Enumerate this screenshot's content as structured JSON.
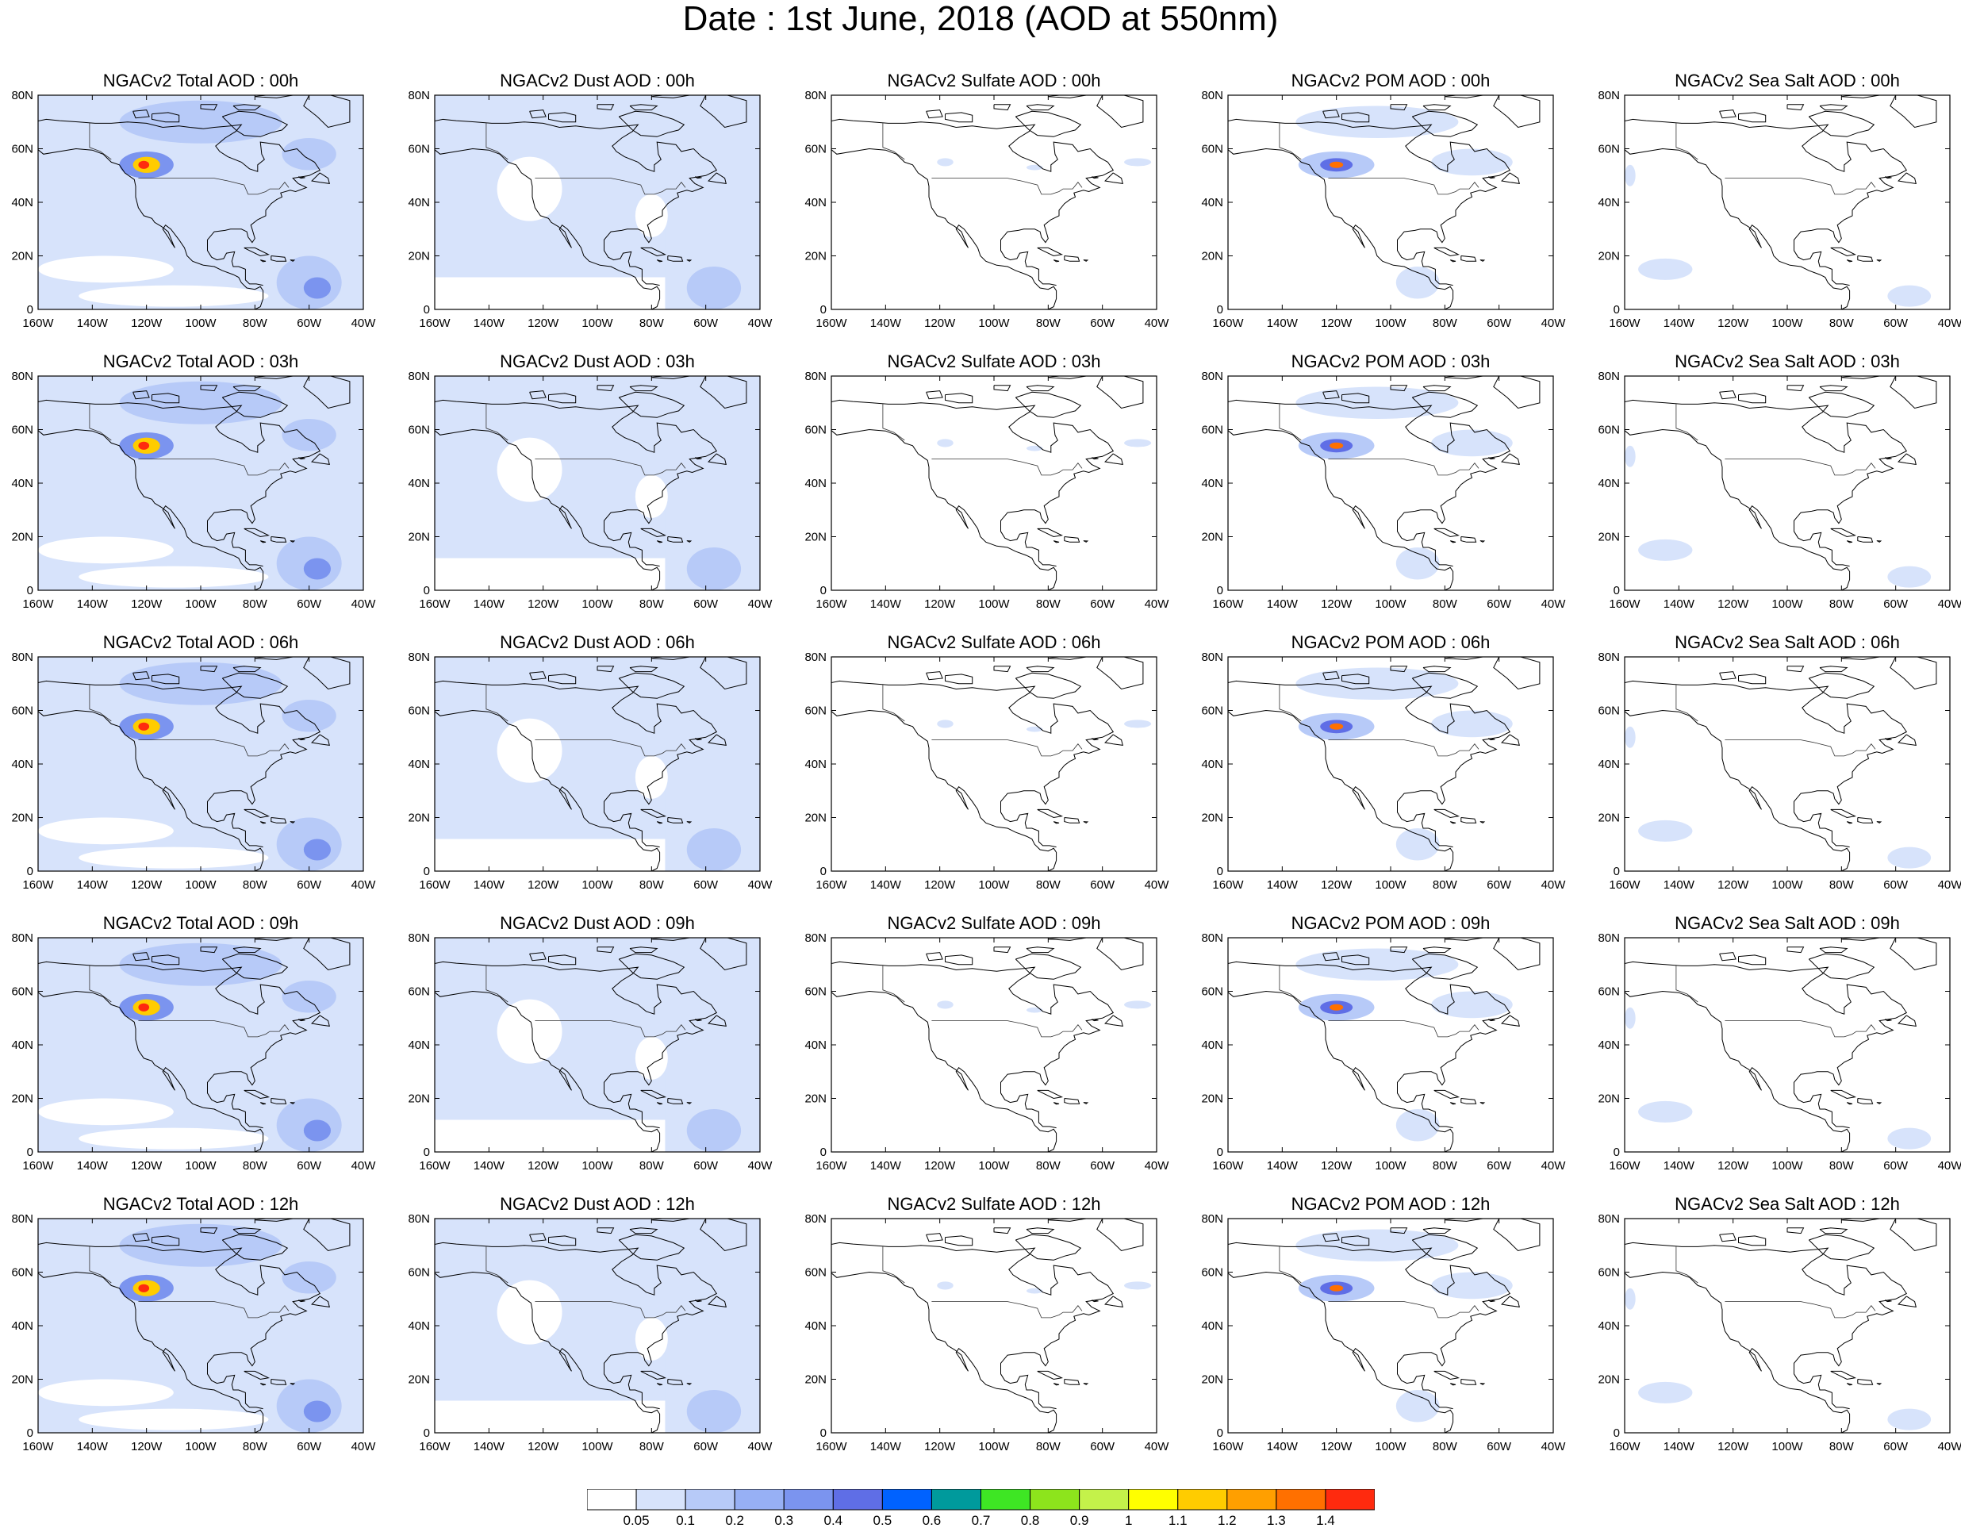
{
  "title": "Date : 1st June, 2018 (AOD at 550nm)",
  "axes": {
    "lon_ticks": [
      "160W",
      "140W",
      "120W",
      "100W",
      "80W",
      "60W",
      "40W"
    ],
    "lat_ticks": [
      "80N",
      "60N",
      "40N",
      "20N",
      "0"
    ]
  },
  "columns": [
    "total",
    "dust",
    "sulfate",
    "pom",
    "seasalt"
  ],
  "rows": [
    "00h",
    "03h",
    "06h",
    "09h",
    "12h"
  ],
  "panel_titles": [
    [
      "NGACv2 Total AOD : 00h",
      "NGACv2 Dust AOD : 00h",
      "NGACv2 Sulfate AOD : 00h",
      "NGACv2 POM AOD : 00h",
      "NGACv2 Sea Salt AOD : 00h"
    ],
    [
      "NGACv2 Total AOD : 03h",
      "NGACv2 Dust AOD : 03h",
      "NGACv2 Sulfate AOD : 03h",
      "NGACv2 POM AOD : 03h",
      "NGACv2 Sea Salt AOD : 03h"
    ],
    [
      "NGACv2 Total AOD : 06h",
      "NGACv2 Dust AOD : 06h",
      "NGACv2 Sulfate AOD : 06h",
      "NGACv2 POM AOD : 06h",
      "NGACv2 Sea Salt AOD : 06h"
    ],
    [
      "NGACv2 Total AOD : 09h",
      "NGACv2 Dust AOD : 09h",
      "NGACv2 Sulfate AOD : 09h",
      "NGACv2 POM AOD : 09h",
      "NGACv2 Sea Salt  AOD : 09h"
    ],
    [
      "NGACv2 Total AOD  : 12h",
      "NGACv2 Dust AOD : 12h",
      "NGACv2 Sulfate AOD : 12h",
      "NGACv2 POM  AOD : 12h",
      "NGACv2 Sea Salt  AOD : 12h"
    ]
  ],
  "colorbar": {
    "colors": [
      "#ffffff",
      "#d7e3fb",
      "#b7caf8",
      "#97b0f5",
      "#7b94ef",
      "#5f6ee6",
      "#0062ff",
      "#009a9c",
      "#3ee624",
      "#8de41c",
      "#c4f24a",
      "#ffff00",
      "#ffcc00",
      "#ff9f00",
      "#ff7000",
      "#ff2a0e"
    ],
    "labels": [
      "0.05",
      "0.1",
      "0.2",
      "0.3",
      "0.4",
      "0.5",
      "0.6",
      "0.7",
      "0.8",
      "0.9",
      "1",
      "1.1",
      "1.2",
      "1.3",
      "1.4"
    ]
  },
  "colors": {
    "ocean_background": "#ffffff",
    "coastline": "#000000",
    "light_aod": "#d7e3fb",
    "medium_aod": "#b7caf8"
  }
}
